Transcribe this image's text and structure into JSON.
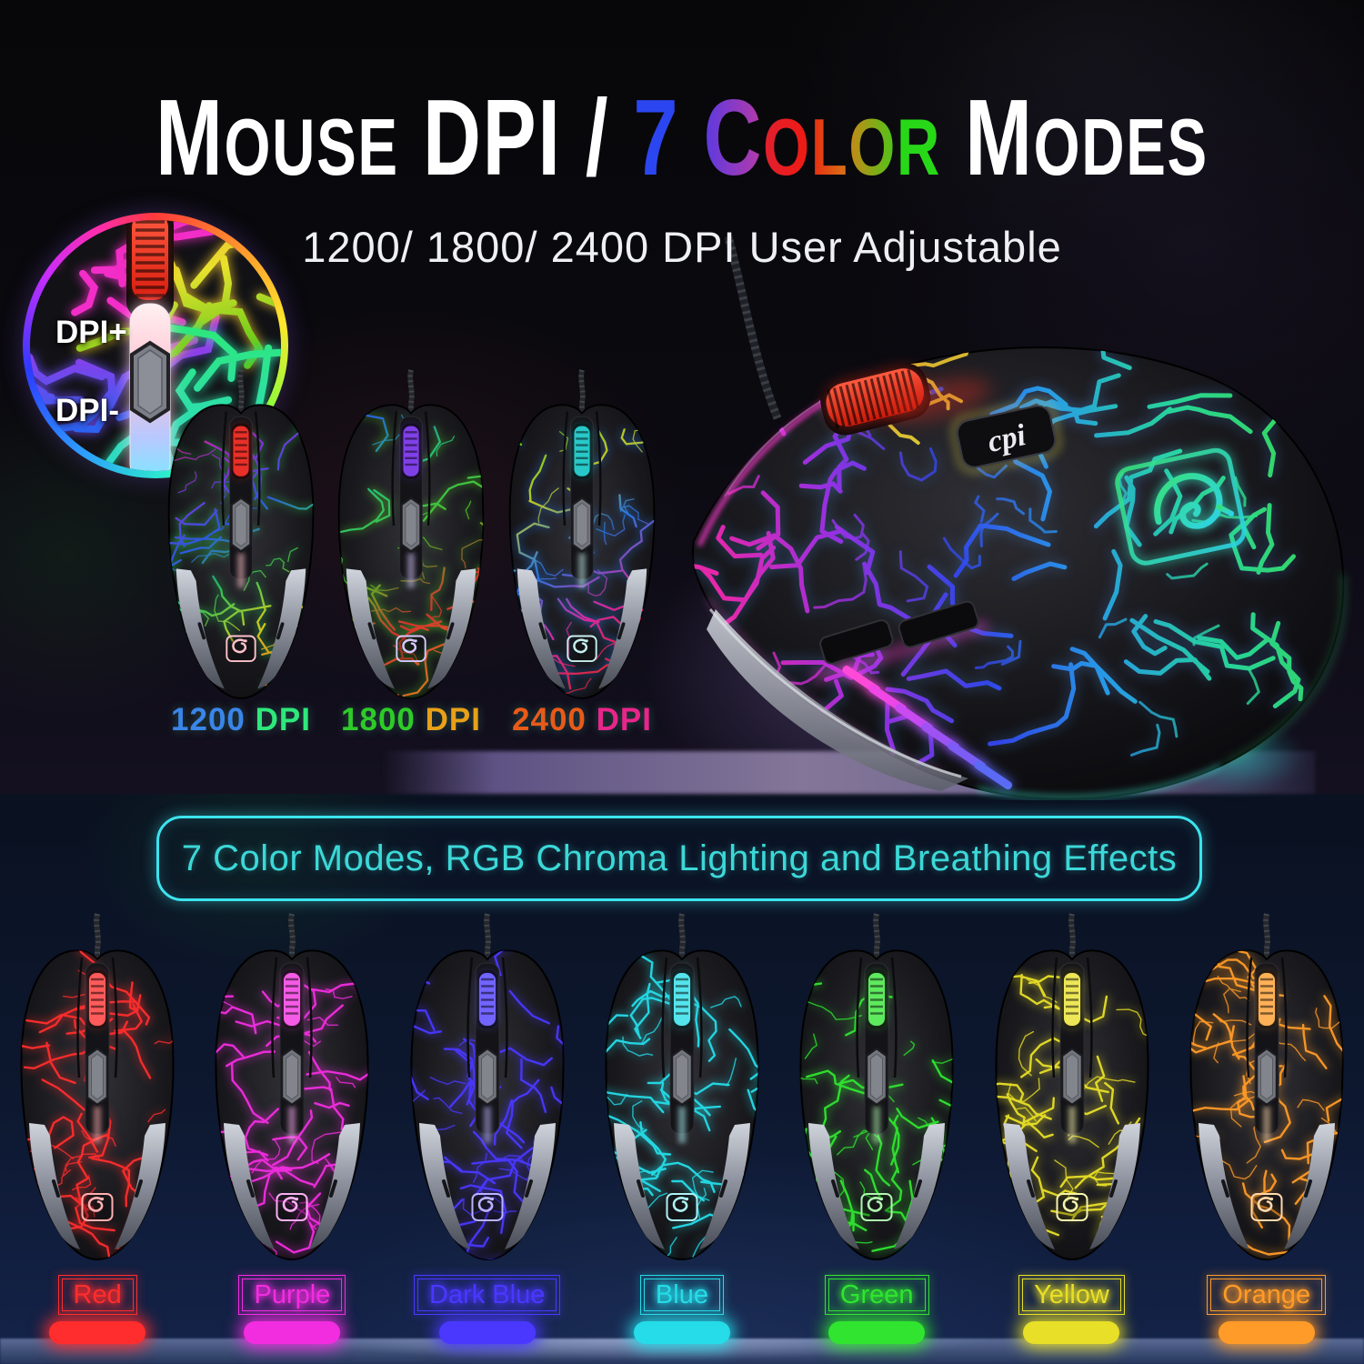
{
  "title": {
    "prefix": "Mouse DPI / ",
    "rainbow": [
      {
        "ch": "7",
        "c1": "#2b46f0",
        "c2": "#2b46f0"
      },
      {
        "ch": " ",
        "c1": "",
        "c2": ""
      },
      {
        "ch": "C",
        "c1": "#5b3ae0",
        "c2": "#b83aa8"
      },
      {
        "ch": "o",
        "c1": "#e02030",
        "c2": "#f01a10"
      },
      {
        "ch": "l",
        "c1": "#e82a10",
        "c2": "#d87818"
      },
      {
        "ch": "o",
        "c1": "#c88818",
        "c2": "#48c818"
      },
      {
        "ch": "r",
        "c1": "#28d818",
        "c2": "#28d818"
      }
    ],
    "suffix": " Modes"
  },
  "subtitle": "1200/ 1800/ 2400 DPI User Adjustable",
  "dpi_inset": {
    "plus": "DPI+",
    "minus": "DPI-"
  },
  "dpi_mice": [
    {
      "label_value": "1200 ",
      "label_unit": "DPI",
      "value_color": "#3a85e8",
      "unit_color": "#2ee87a",
      "wheel": "#e83028",
      "strip": "#ffc2cc",
      "stops": [
        "#e8289a",
        "#8a2ee0",
        "#2e5ae8",
        "#2ec85a",
        "#d8d020",
        "#e87818"
      ],
      "seed": 101
    },
    {
      "label_value": "1800 ",
      "label_unit": "DPI",
      "value_color": "#2ecb28",
      "unit_color": "#e8a018",
      "wheel": "#8040e8",
      "strip": "#d8c8ff",
      "stops": [
        "#2866e0",
        "#28c878",
        "#50c828",
        "#e03030",
        "#e07820"
      ],
      "seed": 202
    },
    {
      "label_value": "2400 ",
      "label_unit": "DPI",
      "value_color": "#e85a18",
      "unit_color": "#e8258a",
      "wheel": "#28c8c8",
      "strip": "#c8f0f0",
      "stops": [
        "#58c820",
        "#c8d020",
        "#2878e8",
        "#e028a0",
        "#e02828"
      ],
      "seed": 303
    }
  ],
  "banner": {
    "text": "7 Color Modes, RGB Chroma Lighting and Breathing Effects",
    "color": "#3cd8d8"
  },
  "color_mice": [
    {
      "label": "Red",
      "color": "#ff2d2d",
      "seed": 11
    },
    {
      "label": "Purple",
      "color": "#f22de0",
      "seed": 22
    },
    {
      "label": "Dark Blue",
      "color": "#4a38ff",
      "seed": 33
    },
    {
      "label": "Blue",
      "color": "#25dce8",
      "seed": 44
    },
    {
      "label": "Green",
      "color": "#30e430",
      "seed": 55
    },
    {
      "label": "Yellow",
      "color": "#e8df28",
      "seed": 66
    },
    {
      "label": "Orange",
      "color": "#ff9b28",
      "seed": 77
    }
  ],
  "big_mouse": {
    "cpi_label": "cpi",
    "wheel": "#e02818",
    "stops": [
      "#f028b0",
      "#a030e8",
      "#3348f0",
      "#28a0f0",
      "#28dca0",
      "#38e060"
    ],
    "accent_orange": [
      "#f0a028",
      "#ece23a"
    ],
    "logo_color": "#35e0c0",
    "vent_colors": [
      "#ff4ad8",
      "#ef46e6",
      "#c84af0",
      "#9e52f4",
      "#7c5cf4",
      "#5a6af4"
    ],
    "seed": 999
  }
}
